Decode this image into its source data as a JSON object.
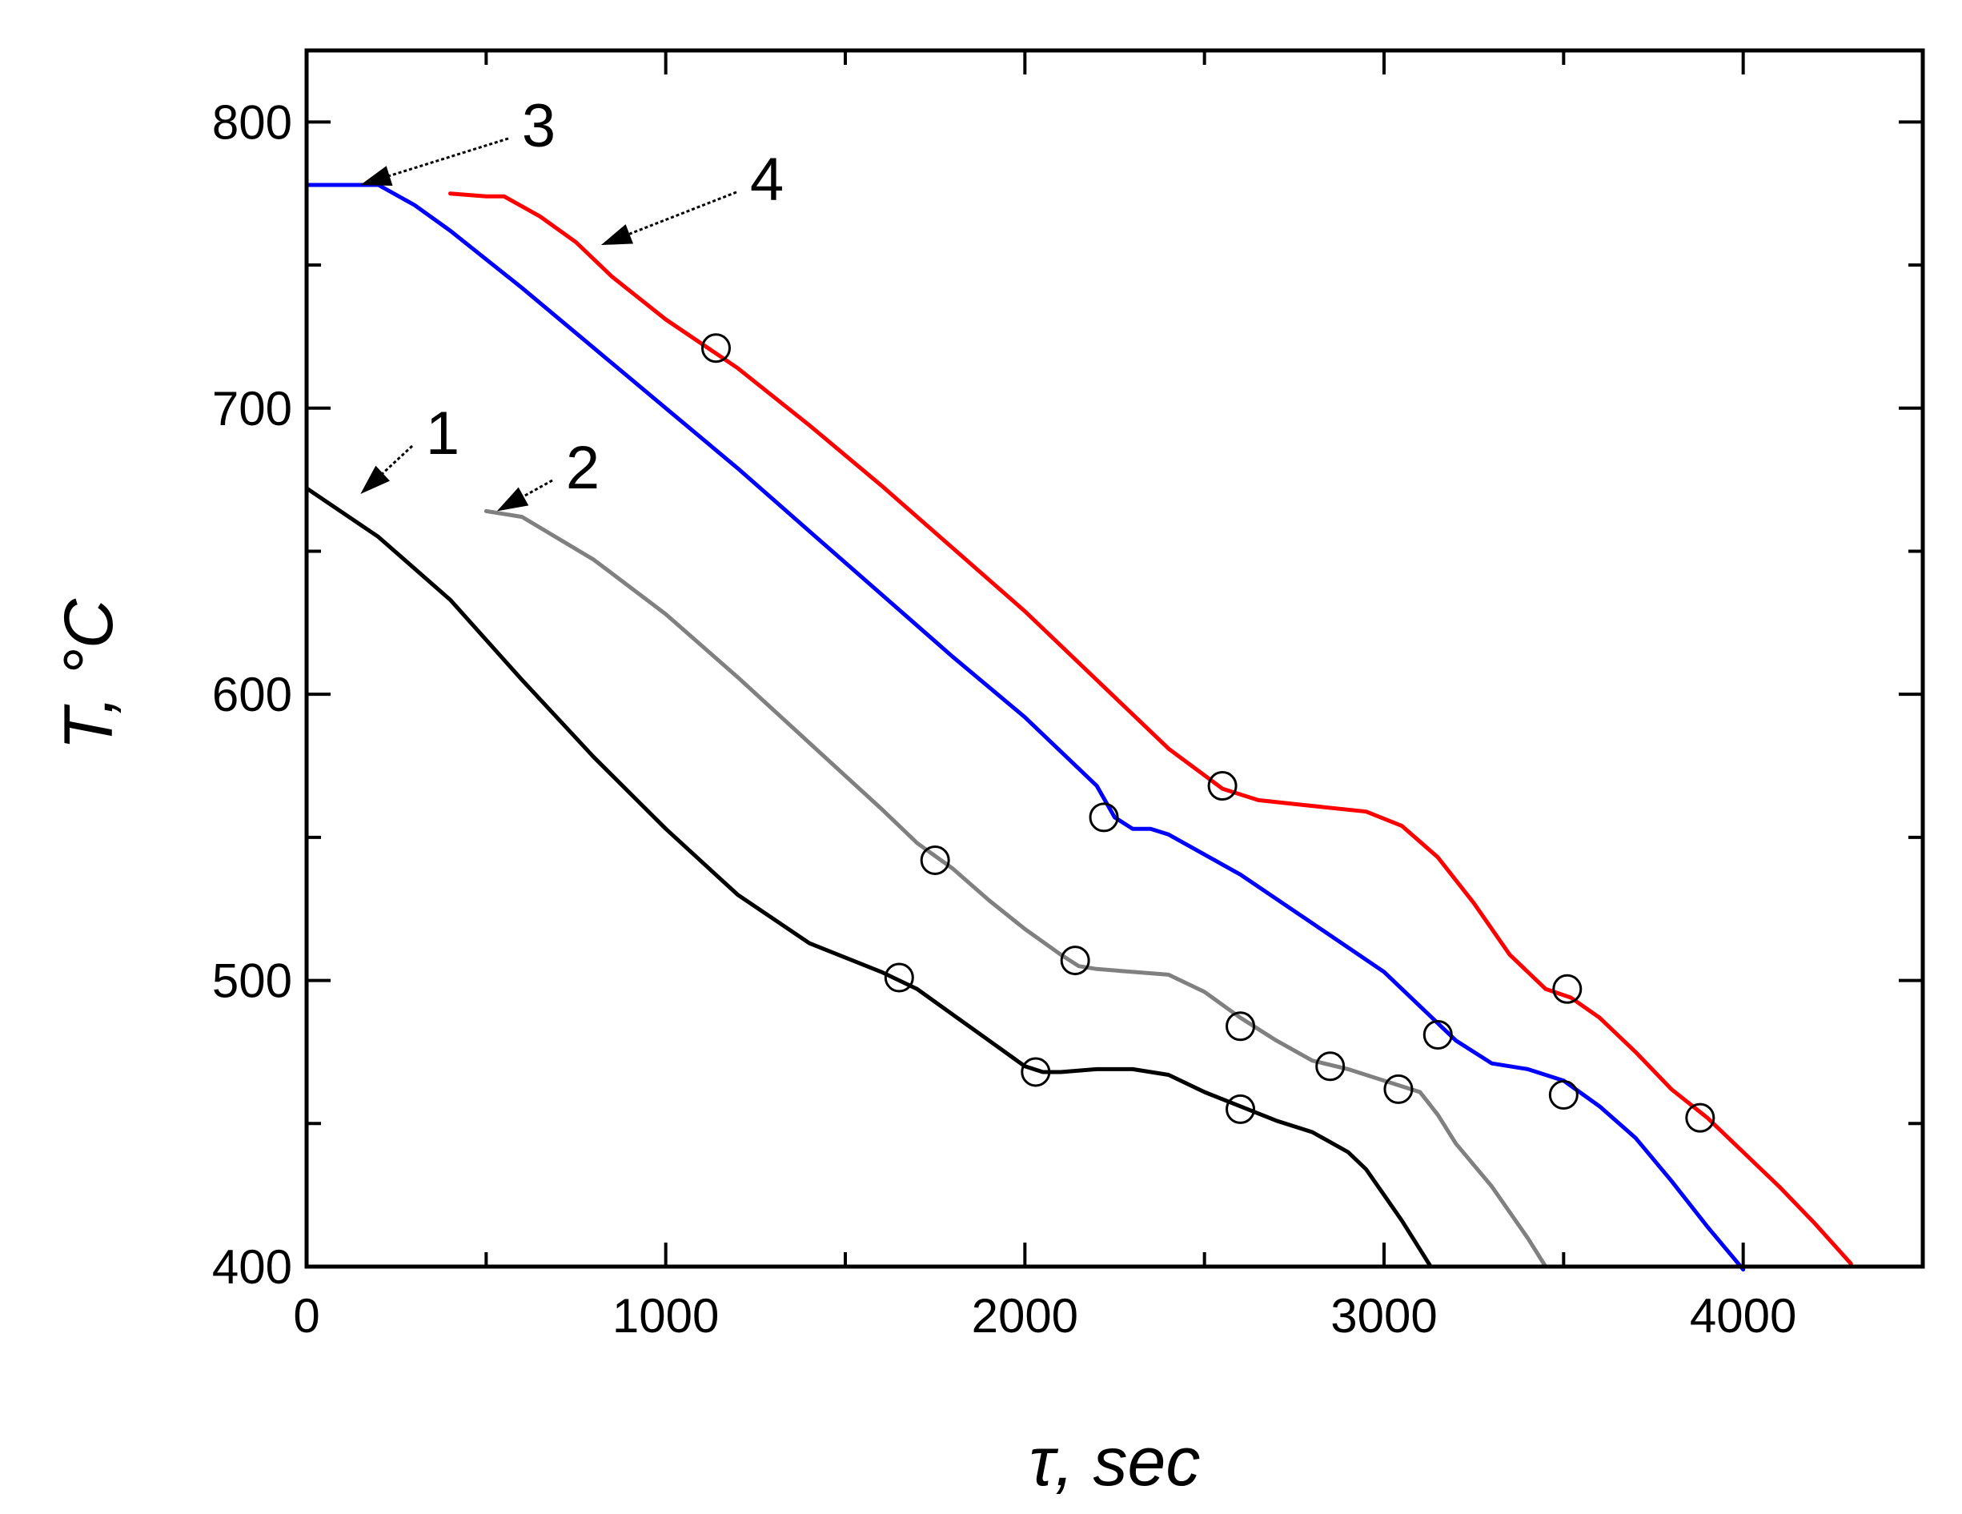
{
  "chart_data": {
    "type": "line",
    "title": "",
    "xlabel": "τ, sec",
    "ylabel": "T, °C",
    "xlim": [
      0,
      4500
    ],
    "ylim": [
      400,
      825
    ],
    "xticks": [
      0,
      1000,
      2000,
      3000,
      4000
    ],
    "yticks": [
      400,
      500,
      600,
      700,
      800
    ],
    "grid": false,
    "legend": "none",
    "series": [
      {
        "name": "1",
        "color": "#000000",
        "x": [
          0,
          200,
          400,
          600,
          800,
          1000,
          1200,
          1400,
          1600,
          1700,
          1800,
          1900,
          2000,
          2050,
          2100,
          2200,
          2300,
          2400,
          2500,
          2600,
          2700,
          2800,
          2900,
          2950,
          3000,
          3050,
          3100,
          3130
        ],
        "y": [
          672,
          655,
          633,
          605,
          578,
          553,
          530,
          513,
          503,
          497,
          488,
          479,
          470,
          468,
          468,
          469,
          469,
          467,
          461,
          456,
          451,
          447,
          440,
          434,
          425,
          416,
          406,
          400
        ]
      },
      {
        "name": "2",
        "color": "#808080",
        "x": [
          500,
          600,
          800,
          1000,
          1200,
          1400,
          1600,
          1700,
          1800,
          1900,
          2000,
          2100,
          2150,
          2200,
          2300,
          2400,
          2500,
          2600,
          2700,
          2800,
          2900,
          3000,
          3100,
          3150,
          3200,
          3300,
          3400,
          3450
        ],
        "y": [
          664,
          662,
          647,
          628,
          606,
          583,
          560,
          548,
          539,
          528,
          518,
          509,
          505,
          504,
          503,
          502,
          496,
          487,
          479,
          472,
          469,
          465,
          461,
          453,
          443,
          428,
          410,
          400
        ]
      },
      {
        "name": "3",
        "color": "#0000ff",
        "x": [
          0,
          150,
          200,
          300,
          400,
          600,
          800,
          1000,
          1200,
          1400,
          1600,
          1800,
          2000,
          2200,
          2250,
          2300,
          2350,
          2400,
          2600,
          2800,
          3000,
          3100,
          3200,
          3300,
          3400,
          3500,
          3600,
          3700,
          3800,
          3900,
          4000
        ],
        "y": [
          778,
          778,
          778,
          771,
          762,
          742,
          721,
          700,
          679,
          657,
          635,
          613,
          592,
          568,
          557,
          553,
          553,
          551,
          537,
          520,
          503,
          491,
          479,
          471,
          469,
          465,
          456,
          445,
          430,
          414,
          399
        ]
      },
      {
        "name": "4",
        "color": "#ff0000",
        "x": [
          400,
          500,
          550,
          650,
          750,
          850,
          1000,
          1200,
          1400,
          1600,
          1800,
          2000,
          2200,
          2400,
          2550,
          2650,
          2800,
          2950,
          3050,
          3150,
          3250,
          3350,
          3450,
          3520,
          3600,
          3700,
          3800,
          3900,
          4000,
          4100,
          4200,
          4300
        ],
        "y": [
          775,
          774,
          774,
          767,
          758,
          746,
          731,
          714,
          694,
          673,
          651,
          629,
          605,
          581,
          567,
          563,
          561,
          559,
          554,
          543,
          527,
          509,
          497,
          494,
          487,
          475,
          462,
          452,
          440,
          428,
          415,
          401
        ]
      }
    ],
    "markers": [
      {
        "series": "1",
        "x": 1650,
        "y": 501
      },
      {
        "series": "1",
        "x": 2030,
        "y": 468
      },
      {
        "series": "1",
        "x": 2600,
        "y": 455
      },
      {
        "series": "2",
        "x": 1750,
        "y": 542
      },
      {
        "series": "2",
        "x": 2140,
        "y": 507
      },
      {
        "series": "2",
        "x": 2600,
        "y": 484
      },
      {
        "series": "2",
        "x": 2850,
        "y": 470
      },
      {
        "series": "2",
        "x": 3040,
        "y": 462
      },
      {
        "series": "3",
        "x": 2220,
        "y": 557
      },
      {
        "series": "3",
        "x": 3150,
        "y": 481
      },
      {
        "series": "3",
        "x": 3500,
        "y": 460
      },
      {
        "series": "4",
        "x": 1140,
        "y": 721
      },
      {
        "series": "4",
        "x": 2550,
        "y": 568
      },
      {
        "series": "4",
        "x": 3510,
        "y": 497
      },
      {
        "series": "4",
        "x": 3880,
        "y": 452
      }
    ],
    "annotations": [
      {
        "text": "1",
        "points_to": {
          "x": 150,
          "y": 670
        }
      },
      {
        "text": "2",
        "points_to": {
          "x": 530,
          "y": 664
        }
      },
      {
        "text": "3",
        "points_to": {
          "x": 150,
          "y": 778
        }
      },
      {
        "text": "4",
        "points_to": {
          "x": 820,
          "y": 757
        }
      }
    ]
  }
}
